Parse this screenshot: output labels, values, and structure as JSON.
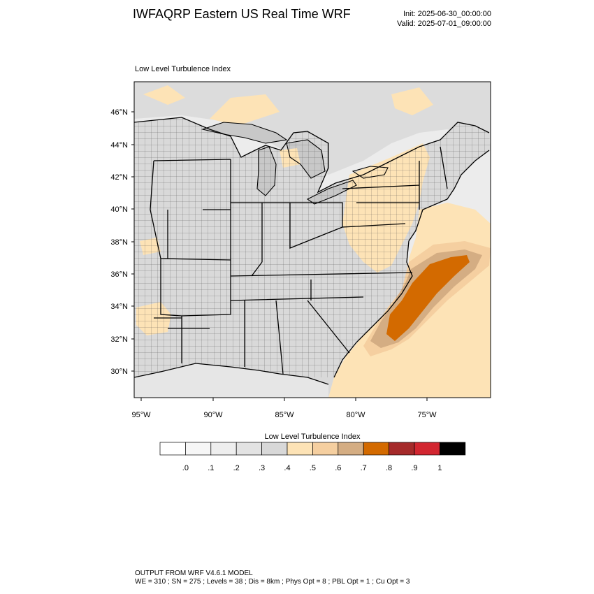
{
  "header": {
    "title": "IWFAQRP Eastern US Real Time WRF",
    "init": "Init: 2025-06-30_00:00:00",
    "valid": "Valid: 2025-07-01_09:00:00"
  },
  "map": {
    "subtitle": "Low Level Turbulence Index",
    "lat_labels": [
      "46°N",
      "44°N",
      "42°N",
      "40°N",
      "38°N",
      "36°N",
      "34°N",
      "32°N",
      "30°N"
    ],
    "lon_labels": [
      "95°W",
      "90°W",
      "85°W",
      "80°W",
      "75°W"
    ],
    "colors": {
      "land_gray": "#d9d9d9",
      "lake_gray": "#c8c8c8",
      "ocean_light": "#ececec",
      "tan_light": "#fde3b6",
      "tan_mid": "#f5cfa0",
      "tan_dark": "#d4ad83",
      "orange": "#d36a00"
    }
  },
  "colorbar": {
    "title": "Low Level Turbulence Index",
    "labels": [
      ".0",
      ".1",
      ".2",
      ".3",
      ".4",
      ".5",
      ".6",
      ".7",
      ".8",
      ".9",
      "1"
    ],
    "colors": [
      "#ffffff",
      "#f6f6f6",
      "#eeeeee",
      "#e3e3e3",
      "#d8d8d8",
      "#fde3b6",
      "#f5cfa0",
      "#d4ad83",
      "#d36a00",
      "#a52a2a",
      "#d22630",
      "#000000"
    ]
  },
  "footer": {
    "line1": "OUTPUT FROM WRF V4.6.1 MODEL",
    "line2": "WE = 310 ; SN = 275 ; Levels = 38 ; Dis = 8km ; Phys Opt = 8 ; PBL Opt = 1 ; Cu Opt = 3"
  }
}
